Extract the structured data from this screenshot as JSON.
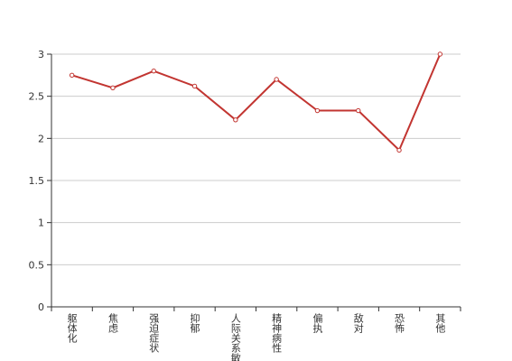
{
  "chart_data": {
    "type": "line",
    "categories": [
      "躯体化",
      "焦虑",
      "强迫症状",
      "抑郁",
      "人际关系敏感",
      "精神病性",
      "偏执",
      "敌对",
      "恐怖",
      "其他"
    ],
    "series": [
      {
        "color": "#c23531",
        "values": [
          2.75,
          2.6,
          2.8,
          2.62,
          2.22,
          2.7,
          2.33,
          2.33,
          1.86,
          3.0
        ]
      }
    ],
    "ylim": [
      0,
      3
    ],
    "yticks": [
      0,
      0.5,
      1,
      1.5,
      2,
      2.5,
      3
    ],
    "grid": true
  }
}
